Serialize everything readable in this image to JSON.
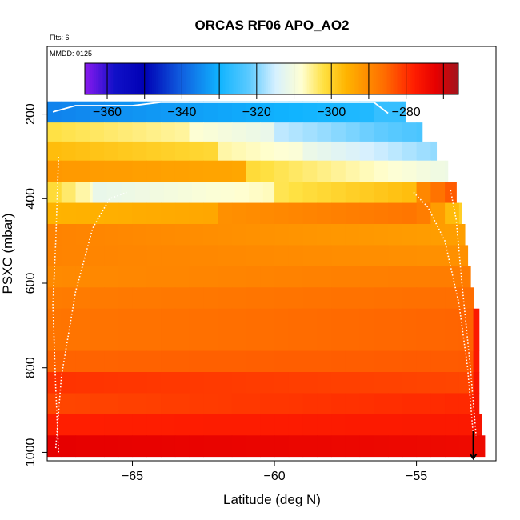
{
  "chart_data": {
    "type": "heatmap",
    "title": "ORCAS RF06 APO_AO2",
    "annotations": [
      "Flts: 6",
      "MMDD: 0125"
    ],
    "xlabel": "Latitude (deg N)",
    "ylabel": "PSXC (mbar)",
    "xlim": [
      -68,
      -52.2
    ],
    "ylim": [
      1020,
      40
    ],
    "y_reversed": true,
    "x_ticks": [
      -65,
      -60,
      -55
    ],
    "y_ticks": [
      200,
      400,
      600,
      800,
      1000
    ],
    "colorbar": {
      "range": [
        -366,
        -266
      ],
      "ticks": [
        -360,
        -340,
        -320,
        -300,
        -280
      ],
      "stops": [
        {
          "v": -366,
          "c": "#8c1af0"
        },
        {
          "v": -358,
          "c": "#1010c8"
        },
        {
          "v": -350,
          "c": "#0000b4"
        },
        {
          "v": -340,
          "c": "#1060e0"
        },
        {
          "v": -330,
          "c": "#10b4ff"
        },
        {
          "v": -322,
          "c": "#5ccaff"
        },
        {
          "v": -315,
          "c": "#d6f0ff"
        },
        {
          "v": -308,
          "c": "#ffffd2"
        },
        {
          "v": -302,
          "c": "#ffe040"
        },
        {
          "v": -296,
          "c": "#ffb400"
        },
        {
          "v": -286,
          "c": "#ff6e00"
        },
        {
          "v": -278,
          "c": "#ff1e00"
        },
        {
          "v": -272,
          "c": "#e60000"
        },
        {
          "v": -266,
          "c": "#a0141e"
        }
      ]
    },
    "rows": [
      {
        "p": [
          170,
          220
        ],
        "x": [
          -68.0,
          -55.4
        ],
        "segments": [
          [
            -68.0,
            -56.5,
            -336,
            -328
          ],
          [
            -56.5,
            -55.4,
            -326,
            -326
          ]
        ]
      },
      {
        "p": [
          220,
          265
        ],
        "x": [
          -68.0,
          -54.8
        ],
        "segments": [
          [
            -68.0,
            -63.0,
            -302,
            -306
          ],
          [
            -63.0,
            -60.0,
            -308,
            -312
          ],
          [
            -60.0,
            -54.8,
            -316,
            -324
          ]
        ]
      },
      {
        "p": [
          265,
          310
        ],
        "x": [
          -68.0,
          -54.3
        ],
        "segments": [
          [
            -68.0,
            -62.0,
            -297,
            -301
          ],
          [
            -62.0,
            -59.0,
            -306,
            -309
          ],
          [
            -59.0,
            -54.3,
            -311,
            -319
          ]
        ]
      },
      {
        "p": [
          310,
          360
        ],
        "x": [
          -68.0,
          -53.9
        ],
        "segments": [
          [
            -68.0,
            -61.0,
            -292,
            -294
          ],
          [
            -61.0,
            -53.9,
            -301,
            -311
          ]
        ]
      },
      {
        "p": [
          360,
          410
        ],
        "x": [
          -68.0,
          -53.6
        ],
        "segments": [
          [
            -68.0,
            -66.4,
            -300,
            -308
          ],
          [
            -66.4,
            -60.0,
            -312,
            -307
          ],
          [
            -60.0,
            -55.0,
            -303,
            -297
          ],
          [
            -55.0,
            -53.6,
            -291,
            -283
          ]
        ]
      },
      {
        "p": [
          410,
          460
        ],
        "x": [
          -68.0,
          -53.4
        ],
        "segments": [
          [
            -68.0,
            -62.0,
            -296,
            -294
          ],
          [
            -62.0,
            -55.0,
            -291,
            -287
          ],
          [
            -55.0,
            -53.4,
            -286,
            -300
          ]
        ]
      },
      {
        "p": [
          460,
          510
        ],
        "x": [
          -68.0,
          -53.3
        ],
        "segments": [
          [
            -68.0,
            -53.3,
            -289,
            -293
          ]
        ]
      },
      {
        "p": [
          510,
          560
        ],
        "x": [
          -68.0,
          -53.2
        ],
        "segments": [
          [
            -68.0,
            -53.2,
            -289,
            -291
          ]
        ]
      },
      {
        "p": [
          560,
          610
        ],
        "x": [
          -68.0,
          -53.1
        ],
        "segments": [
          [
            -68.0,
            -53.1,
            -290,
            -288
          ]
        ]
      },
      {
        "p": [
          610,
          660
        ],
        "x": [
          -68.0,
          -53.0
        ],
        "segments": [
          [
            -68.0,
            -53.0,
            -288,
            -286
          ]
        ]
      },
      {
        "p": [
          660,
          710
        ],
        "x": [
          -68.0,
          -52.8
        ],
        "segments": [
          [
            -68.0,
            -53.0,
            -287,
            -285
          ],
          [
            -53.0,
            -52.8,
            -277,
            -277
          ]
        ]
      },
      {
        "p": [
          710,
          760
        ],
        "x": [
          -68.0,
          -52.8
        ],
        "segments": [
          [
            -68.0,
            -53.0,
            -287,
            -285
          ],
          [
            -53.0,
            -52.8,
            -277,
            -277
          ]
        ]
      },
      {
        "p": [
          760,
          810
        ],
        "x": [
          -68.0,
          -52.8
        ],
        "segments": [
          [
            -68.0,
            -53.0,
            -285,
            -284
          ],
          [
            -53.0,
            -52.8,
            -277,
            -277
          ]
        ]
      },
      {
        "p": [
          810,
          860
        ],
        "x": [
          -68.0,
          -52.8
        ],
        "segments": [
          [
            -68.0,
            -53.0,
            -280,
            -282
          ],
          [
            -53.0,
            -52.8,
            -276,
            -276
          ]
        ]
      },
      {
        "p": [
          860,
          910
        ],
        "x": [
          -68.0,
          -52.8
        ],
        "segments": [
          [
            -68.0,
            -53.0,
            -282,
            -279
          ],
          [
            -53.0,
            -52.8,
            -276,
            -276
          ]
        ]
      },
      {
        "p": [
          910,
          960
        ],
        "x": [
          -68.0,
          -52.7
        ],
        "segments": [
          [
            -68.0,
            -53.0,
            -278,
            -277
          ],
          [
            -53.0,
            -52.7,
            -276,
            -276
          ]
        ]
      },
      {
        "p": [
          960,
          1010
        ],
        "x": [
          -68.0,
          -52.6
        ],
        "segments": [
          [
            -68.0,
            -52.6,
            -272,
            -274
          ]
        ]
      }
    ],
    "flight_tracks": [
      {
        "lat": [
          -67.7,
          -67.5,
          -67.0,
          -66.4,
          -65.8,
          -65.2
        ],
        "p": [
          990,
          820,
          620,
          470,
          400,
          385
        ]
      },
      {
        "lat": [
          -67.6,
          -67.7,
          -67.8,
          -67.7,
          -67.6
        ],
        "p": [
          1000,
          850,
          650,
          500,
          300
        ]
      },
      {
        "lat": [
          -55.1,
          -54.6,
          -54.0,
          -53.5,
          -53.2,
          -53.0
        ],
        "p": [
          385,
          420,
          500,
          650,
          800,
          960
        ]
      },
      {
        "lat": [
          -53.8,
          -53.6,
          -53.4,
          -53.1,
          -52.9
        ],
        "p": [
          380,
          450,
          600,
          800,
          960
        ]
      }
    ],
    "level_track": {
      "lat": [
        -67.8,
        -67.0,
        -65.0,
        -64.0,
        -56.5,
        -56.0
      ],
      "p": [
        195,
        180,
        180,
        172,
        172,
        198
      ]
    },
    "arrow_lat": -53.0,
    "arrow_p": [
      950,
      1015
    ]
  }
}
